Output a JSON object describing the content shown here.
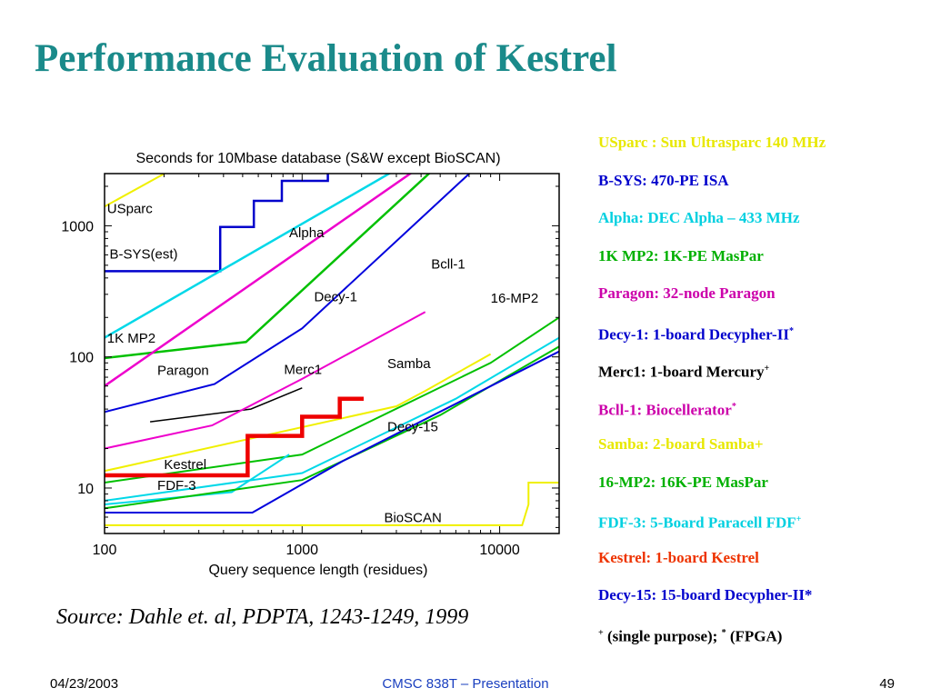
{
  "slide": {
    "title": "Performance Evaluation of Kestrel",
    "source": "Source: Dahle et. al, PDPTA, 1243-1249, 1999",
    "footer": {
      "date": "04/23/2003",
      "center": "CMSC 838T – Presentation",
      "page": "49"
    }
  },
  "legend": [
    {
      "text": "USparc : Sun Ultrasparc 140 MHz",
      "sup": "",
      "color": "#e8e800"
    },
    {
      "text": "B-SYS: 470-PE ISA",
      "sup": "",
      "color": "#0000cc"
    },
    {
      "text": "Alpha: DEC Alpha – 433 MHz",
      "sup": "",
      "color": "#00d0e0"
    },
    {
      "text": "1K MP2: 1K-PE MasPar",
      "sup": "",
      "color": "#00b000"
    },
    {
      "text": "Paragon: 32-node Paragon",
      "sup": "",
      "color": "#cc00aa"
    },
    {
      "text": "Decy-1: 1-board Decypher-II",
      "sup": "*",
      "color": "#0000cc"
    },
    {
      "text": "Merc1: 1-board Mercury",
      "sup": "+",
      "color": "#000000"
    },
    {
      "text": "Bcll-1: Biocellerator",
      "sup": "*",
      "color": "#cc00aa"
    },
    {
      "text": "Samba: 2-board Samba+",
      "sup": "",
      "color": "#e8e800"
    },
    {
      "text": "16-MP2: 16K-PE MasPar",
      "sup": "",
      "color": "#00b000"
    },
    {
      "text": "FDF-3: 5-Board Paracell FDF",
      "sup": "+",
      "color": "#00d0e0"
    },
    {
      "text": "Kestrel: 1-board Kestrel",
      "sup": "",
      "color": "#ee3300"
    },
    {
      "text": "Decy-15: 15-board Decypher-II*",
      "sup": "",
      "color": "#0000cc"
    },
    {
      "text": " (single purpose); ",
      "pre": "+",
      "mid": "*",
      "post": " (FPGA)",
      "color": "#000000"
    }
  ],
  "chart_data": {
    "type": "line",
    "title": "Seconds for 10Mbase database (S&W except BioSCAN)",
    "xlabel": "Query sequence length (residues)",
    "ylabel": "",
    "xscale": "log",
    "yscale": "log",
    "xlim": [
      100,
      20000
    ],
    "ylim": [
      4.5,
      2500
    ],
    "xticks": [
      "100",
      "1000",
      "10000"
    ],
    "yticks": [
      "10",
      "100",
      "1000"
    ],
    "series": [
      {
        "name": "USparc",
        "color": "#f0f000",
        "width": 2,
        "x": [
          100,
          250
        ],
        "y": [
          1400,
          3000
        ]
      },
      {
        "name": "B-SYS(est)",
        "color": "#0000cc",
        "width": 2.5,
        "step": true,
        "x": [
          100,
          385,
          385,
          570,
          570,
          790,
          790,
          1350,
          1350,
          20000
        ],
        "y": [
          450,
          450,
          980,
          980,
          1550,
          1550,
          2200,
          2200,
          3000,
          3000
        ]
      },
      {
        "name": "Alpha",
        "color": "#00d8e8",
        "width": 2.5,
        "x": [
          100,
          3400
        ],
        "y": [
          140,
          3000
        ]
      },
      {
        "name": "1K MP2",
        "color": "#00c000",
        "width": 2.5,
        "x": [
          100,
          520,
          5000
        ],
        "y": [
          98,
          130,
          3000
        ]
      },
      {
        "name": "Paragon",
        "color": "#ee00cc",
        "width": 2.5,
        "x": [
          100,
          4200
        ],
        "y": [
          60,
          3000
        ]
      },
      {
        "name": "Decy-1",
        "color": "#0000dd",
        "width": 2,
        "x": [
          100,
          360,
          1000,
          8000
        ],
        "y": [
          38,
          62,
          165,
          3000
        ]
      },
      {
        "name": "Merc1",
        "color": "#000000",
        "width": 1.5,
        "x": [
          170,
          550,
          1000
        ],
        "y": [
          32,
          40,
          58
        ]
      },
      {
        "name": "Bcll-1",
        "color": "#ee00cc",
        "width": 2,
        "x": [
          100,
          350,
          1000,
          4200
        ],
        "y": [
          20,
          30,
          68,
          220
        ]
      },
      {
        "name": "Samba",
        "color": "#f0f000",
        "width": 2,
        "x": [
          100,
          3000,
          4200,
          9000
        ],
        "y": [
          13.5,
          42,
          55,
          105
        ]
      },
      {
        "name": "16-MP2",
        "color": "#00c000",
        "width": 2,
        "x": [
          100,
          1000,
          9000,
          20000
        ],
        "y": [
          11,
          18,
          90,
          200
        ]
      },
      {
        "name": "FDF-3",
        "color": "#00d8e8",
        "width": 2,
        "x": [
          100,
          440,
          860
        ],
        "y": [
          7.5,
          9.3,
          18
        ]
      },
      {
        "name": "FDF-3 low",
        "color": "#00d8e8",
        "width": 2,
        "x": [
          100,
          1000,
          6000,
          20000
        ],
        "y": [
          8,
          13,
          48,
          140
        ]
      },
      {
        "name": "Green low",
        "color": "#00c000",
        "width": 2,
        "x": [
          100,
          1000,
          5000,
          20000
        ],
        "y": [
          7,
          11.5,
          36,
          120
        ]
      },
      {
        "name": "Decy-15",
        "color": "#0000dd",
        "width": 2,
        "x": [
          100,
          560,
          1600,
          20000
        ],
        "y": [
          6.5,
          6.5,
          16,
          110
        ]
      },
      {
        "name": "Kestrel",
        "color": "#ee0000",
        "width": 4.5,
        "step": true,
        "x": [
          100,
          530,
          530,
          1000,
          1000,
          1550,
          1550,
          2050
        ],
        "y": [
          12.5,
          12.5,
          25,
          25,
          35,
          35,
          48,
          48
        ]
      },
      {
        "name": "BioSCAN",
        "color": "#f0f000",
        "width": 2,
        "step": true,
        "x": [
          100,
          13000,
          14000,
          14000,
          20000
        ],
        "y": [
          5.2,
          5.2,
          7.5,
          11,
          11
        ]
      }
    ],
    "labels": [
      {
        "text": "USparc",
        "x": 103,
        "y": 1250
      },
      {
        "text": "Alpha",
        "x": 860,
        "y": 820
      },
      {
        "text": "B-SYS(est)",
        "x": 106,
        "y": 560
      },
      {
        "text": "Bcll-1",
        "x": 4500,
        "y": 470
      },
      {
        "text": "Decy-1",
        "x": 1150,
        "y": 265
      },
      {
        "text": "16-MP2",
        "x": 9000,
        "y": 260
      },
      {
        "text": "1K MP2",
        "x": 103,
        "y": 128
      },
      {
        "text": "Paragon",
        "x": 185,
        "y": 73
      },
      {
        "text": "Samba",
        "x": 2700,
        "y": 82
      },
      {
        "text": "Merc1",
        "x": 810,
        "y": 74
      },
      {
        "text": "Decy-15",
        "x": 2700,
        "y": 27
      },
      {
        "text": "Kestrel",
        "x": 200,
        "y": 14
      },
      {
        "text": "FDF-3",
        "x": 185,
        "y": 9.7
      },
      {
        "text": "BioSCAN",
        "x": 2600,
        "y": 5.5
      }
    ]
  }
}
